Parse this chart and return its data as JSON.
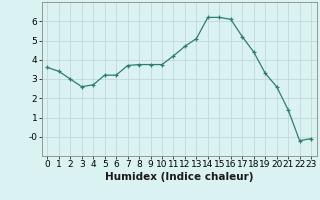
{
  "x": [
    0,
    1,
    2,
    3,
    4,
    5,
    6,
    7,
    8,
    9,
    10,
    11,
    12,
    13,
    14,
    15,
    16,
    17,
    18,
    19,
    20,
    21,
    22,
    23
  ],
  "y": [
    3.6,
    3.4,
    3.0,
    2.6,
    2.7,
    3.2,
    3.2,
    3.7,
    3.75,
    3.75,
    3.75,
    4.2,
    4.7,
    5.1,
    6.2,
    6.2,
    6.1,
    5.2,
    4.4,
    3.3,
    2.6,
    1.4,
    -0.2,
    -0.1
  ],
  "xlabel": "Humidex (Indice chaleur)",
  "ylim": [
    -1,
    7
  ],
  "xlim": [
    -0.5,
    23.5
  ],
  "yticks": [
    0,
    1,
    2,
    3,
    4,
    5,
    6
  ],
  "ytick_labels": [
    "-0",
    "1",
    "2",
    "3",
    "4",
    "5",
    "6"
  ],
  "xticks": [
    0,
    1,
    2,
    3,
    4,
    5,
    6,
    7,
    8,
    9,
    10,
    11,
    12,
    13,
    14,
    15,
    16,
    17,
    18,
    19,
    20,
    21,
    22,
    23
  ],
  "line_color": "#2e7d6e",
  "marker": "+",
  "bg_color": "#daf2f2",
  "grid_color": "#c0d8d8",
  "xlabel_fontsize": 7.5,
  "tick_fontsize": 6.5
}
